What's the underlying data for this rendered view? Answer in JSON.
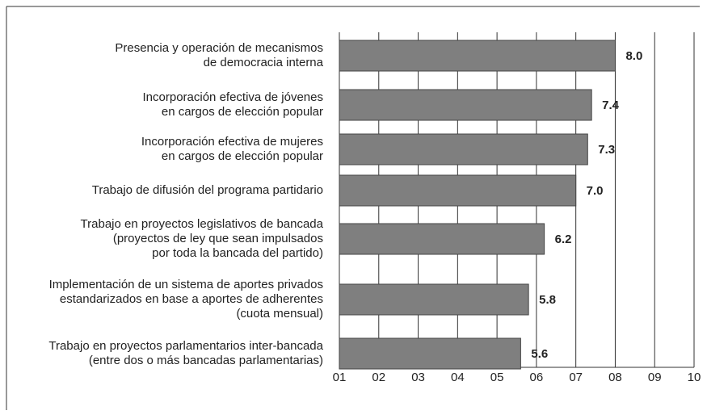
{
  "chart_data": {
    "type": "bar",
    "orientation": "horizontal",
    "categories": [
      "Presencia y operación de mecanismos\nde democracia interna",
      "Incorporación efectiva de jóvenes\nen cargos de elección popular",
      "Incorporación efectiva de mujeres\nen cargos de elección popular",
      "Trabajo de difusión del programa partidario",
      "Trabajo en proyectos legislativos de bancada\n(proyectos de ley que sean impulsados\npor toda la bancada del partido)",
      "Implementación de un sistema de aportes privados\nestandarizados en base a aportes de adherentes\n(cuota mensual)",
      "Trabajo en proyectos parlamentarios inter-bancada\n(entre dos o más bancadas parlamentarias)"
    ],
    "values": [
      8.0,
      7.4,
      7.3,
      7.0,
      6.2,
      5.8,
      5.6
    ],
    "value_labels": [
      "8.0",
      "7.4",
      "7.3",
      "7.0",
      "6.2",
      "5.8",
      "5.6"
    ],
    "color": "#7f7f7f",
    "xlim": [
      1,
      10
    ],
    "xticks": [
      {
        "value": 1,
        "label": "01"
      },
      {
        "value": 2,
        "label": "02"
      },
      {
        "value": 3,
        "label": "03"
      },
      {
        "value": 4,
        "label": "04"
      },
      {
        "value": 5,
        "label": "05"
      },
      {
        "value": 6,
        "label": "06"
      },
      {
        "value": 7,
        "label": "07"
      },
      {
        "value": 8,
        "label": "08"
      },
      {
        "value": 9,
        "label": "09"
      },
      10
    ],
    "grid": true
  }
}
